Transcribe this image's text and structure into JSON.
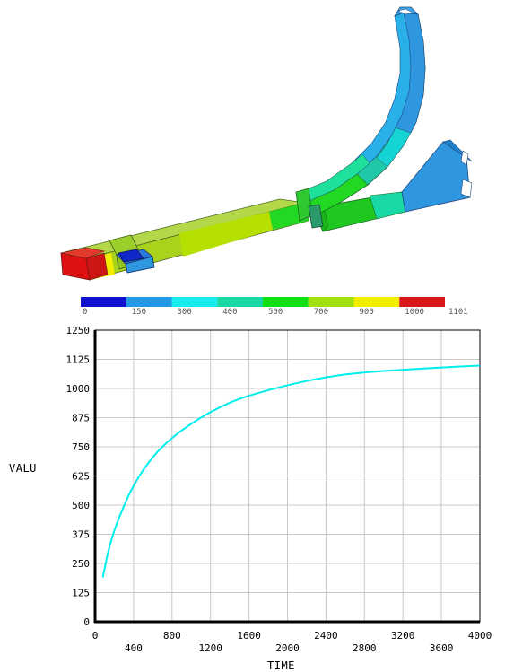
{
  "figure": {
    "colors": {
      "hot": "#dd1111",
      "warm": "#b6e000",
      "mid": "#22d822",
      "cool": "#1fdca0",
      "cold": "#2e97e0",
      "coldest": "#1128c8"
    }
  },
  "legend": {
    "colors": [
      "#1010d0",
      "#2299e6",
      "#16ecec",
      "#18d8a6",
      "#10e010",
      "#a2e010",
      "#f2ee00",
      "#d81818"
    ],
    "labels": [
      "0",
      "150",
      "300",
      "400",
      "500",
      "700",
      "900",
      "1000",
      "1101"
    ]
  },
  "chart_data": {
    "type": "line",
    "xlabel": "TIME",
    "ylabel": "VALU",
    "xlim": [
      0,
      4000
    ],
    "ylim": [
      0,
      1250
    ],
    "xticks": [
      "0",
      "400",
      "800",
      "1200",
      "1600",
      "2000",
      "2400",
      "2800",
      "3200",
      "3600",
      "4000"
    ],
    "yticks": [
      "0",
      "125",
      "250",
      "375",
      "500",
      "625",
      "750",
      "875",
      "1000",
      "1125",
      "1250"
    ],
    "grid": true,
    "series": [
      {
        "color": "#00eeee",
        "x": [
          80,
          150,
          250,
          400,
          600,
          800,
          1000,
          1200,
          1400,
          1600,
          2000,
          2400,
          2800,
          3200,
          3600,
          4000
        ],
        "y": [
          190,
          330,
          450,
          590,
          710,
          790,
          850,
          900,
          940,
          970,
          1015,
          1050,
          1070,
          1080,
          1090,
          1098
        ]
      }
    ]
  }
}
